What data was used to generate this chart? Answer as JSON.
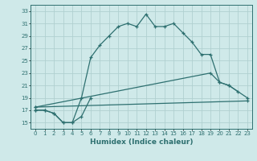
{
  "xlabel": "Humidex (Indice chaleur)",
  "bg_color": "#cfe9e9",
  "grid_color": "#b0d0d0",
  "line_color": "#2e7070",
  "xlim": [
    -0.5,
    23.5
  ],
  "ylim": [
    14.0,
    34.0
  ],
  "xticks": [
    0,
    1,
    2,
    3,
    4,
    5,
    6,
    7,
    8,
    9,
    10,
    11,
    12,
    13,
    14,
    15,
    16,
    17,
    18,
    19,
    20,
    21,
    22,
    23
  ],
  "yticks": [
    15,
    17,
    19,
    21,
    23,
    25,
    27,
    29,
    31,
    33
  ],
  "line1": {
    "x": [
      0,
      1,
      2,
      3,
      4,
      5,
      6,
      7,
      8,
      9,
      10,
      11,
      12,
      13,
      14,
      15,
      16,
      17,
      18,
      19,
      20,
      21,
      22
    ],
    "y": [
      17.0,
      17.0,
      16.5,
      15.0,
      15.0,
      19.0,
      25.5,
      27.5,
      29.0,
      30.5,
      31.0,
      30.5,
      32.5,
      30.5,
      30.5,
      31.0,
      29.5,
      28.0,
      26.0,
      26.0,
      21.5,
      21.0,
      20.0
    ]
  },
  "line2": {
    "x": [
      0,
      1,
      2,
      3,
      4,
      5,
      6
    ],
    "y": [
      17.0,
      17.0,
      16.5,
      15.0,
      15.0,
      16.0,
      19.0
    ]
  },
  "line3": {
    "x": [
      0,
      23
    ],
    "y": [
      17.5,
      18.5
    ]
  },
  "line4": {
    "x": [
      0,
      19,
      20,
      21,
      23
    ],
    "y": [
      17.5,
      23.0,
      21.5,
      21.0,
      19.0
    ]
  }
}
